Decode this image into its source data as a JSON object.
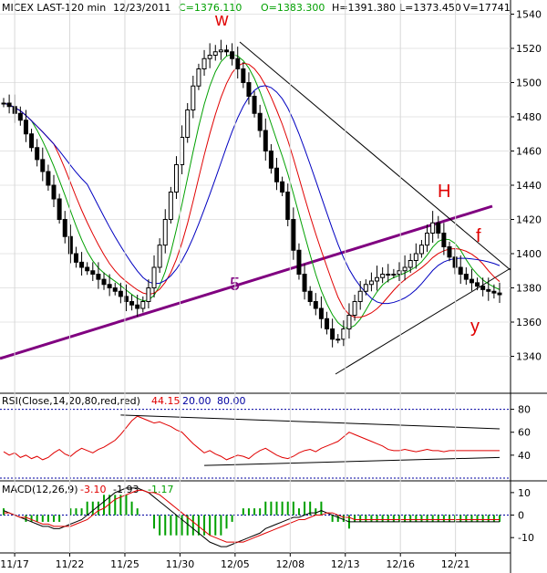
{
  "chart_data": [
    {
      "type": "candlestick",
      "header": {
        "symbol": "MICEX LAST-120 min",
        "date": "12/23/2011",
        "close": "C=1376.110",
        "open": "O=1383.300",
        "high": "H=1391.380",
        "low": "L=1373.450",
        "volume": "V=17741"
      },
      "x_ticks": [
        "11/17",
        "11/22",
        "11/25",
        "11/30",
        "12/05",
        "12/08",
        "12/13",
        "12/16",
        "12/21"
      ],
      "y_ticks": [
        1340,
        1360,
        1380,
        1400,
        1420,
        1440,
        1460,
        1480,
        1500,
        1520,
        1540
      ],
      "ylim": [
        1320,
        1544
      ],
      "annotations": [
        "w",
        "H",
        "f",
        "y",
        "5"
      ],
      "closes": [
        1488,
        1486,
        1482,
        1478,
        1470,
        1462,
        1455,
        1448,
        1440,
        1432,
        1420,
        1410,
        1400,
        1395,
        1392,
        1390,
        1388,
        1385,
        1382,
        1380,
        1378,
        1375,
        1372,
        1370,
        1368,
        1372,
        1380,
        1392,
        1405,
        1420,
        1436,
        1452,
        1468,
        1484,
        1498,
        1508,
        1514,
        1516,
        1518,
        1519,
        1518,
        1514,
        1508,
        1500,
        1492,
        1482,
        1472,
        1460,
        1450,
        1442,
        1436,
        1420,
        1402,
        1388,
        1378,
        1372,
        1368,
        1362,
        1356,
        1350,
        1350,
        1356,
        1364,
        1372,
        1378,
        1382,
        1384,
        1386,
        1388,
        1388,
        1388,
        1390,
        1392,
        1396,
        1400,
        1405,
        1412,
        1418,
        1412,
        1404,
        1398,
        1392,
        1388,
        1385,
        1383,
        1381,
        1379,
        1378,
        1377,
        1376
      ]
    },
    {
      "type": "line",
      "label": "RSI(Close,14,20,80,red,red)",
      "value": "44.15",
      "levels_text": [
        "20.00",
        "80.00"
      ],
      "levels": [
        20,
        80
      ],
      "y_ticks": [
        40,
        60,
        80
      ],
      "ylim": [
        20,
        90
      ],
      "values": [
        43,
        40,
        42,
        38,
        40,
        37,
        39,
        36,
        38,
        42,
        45,
        41,
        39,
        43,
        46,
        44,
        42,
        45,
        47,
        50,
        53,
        58,
        64,
        70,
        74,
        72,
        70,
        68,
        69,
        67,
        65,
        62,
        60,
        55,
        50,
        46,
        42,
        44,
        41,
        39,
        36,
        38,
        40,
        39,
        37,
        41,
        44,
        46,
        43,
        40,
        38,
        37,
        39,
        42,
        44,
        45,
        43,
        46,
        48,
        50,
        52,
        56,
        60,
        58,
        56,
        54,
        52,
        50,
        48,
        45,
        44,
        44,
        45,
        44,
        43,
        44,
        45,
        44,
        44,
        43,
        44,
        44,
        44,
        44,
        44,
        44,
        44,
        44,
        44,
        44
      ]
    },
    {
      "type": "line",
      "label": "MACD(12,26,9)",
      "values_text": [
        "-3.10",
        "-1.93",
        "-1.17"
      ],
      "y_ticks": [
        -10,
        0,
        10
      ],
      "ylim": [
        -16,
        14
      ],
      "macd": [
        2,
        1,
        0,
        -1,
        -2,
        -3,
        -4,
        -5,
        -5,
        -6,
        -6,
        -5,
        -4,
        -3,
        -2,
        0,
        2,
        4,
        6,
        8,
        10,
        11,
        12,
        12,
        12,
        11,
        10,
        8,
        6,
        4,
        2,
        0,
        -2,
        -4,
        -6,
        -8,
        -10,
        -12,
        -13,
        -14,
        -14,
        -13,
        -12,
        -11,
        -10,
        -9,
        -8,
        -6,
        -5,
        -4,
        -3,
        -2,
        -1,
        -1,
        0,
        1,
        1,
        2,
        1,
        0,
        -1,
        -2,
        -3,
        -3,
        -3,
        -3,
        -3,
        -3,
        -3,
        -3,
        -3,
        -3,
        -3,
        -3,
        -3,
        -3,
        -3,
        -3,
        -3,
        -3,
        -3,
        -3,
        -3,
        -3,
        -3,
        -3,
        -3,
        -3,
        -3,
        -3
      ],
      "signal": [
        1,
        1,
        0,
        -1,
        -1,
        -2,
        -3,
        -4,
        -4,
        -5,
        -5,
        -5,
        -5,
        -4,
        -3,
        -2,
        0,
        2,
        3,
        5,
        7,
        8,
        9,
        10,
        11,
        11,
        10,
        10,
        9,
        7,
        5,
        3,
        1,
        -1,
        -3,
        -5,
        -7,
        -9,
        -10,
        -11,
        -12,
        -12,
        -12,
        -12,
        -11,
        -10,
        -9,
        -8,
        -7,
        -6,
        -5,
        -4,
        -3,
        -2,
        -2,
        -1,
        0,
        0,
        1,
        1,
        0,
        -1,
        -1,
        -2,
        -2,
        -2,
        -2,
        -2,
        -2,
        -2,
        -2,
        -2,
        -2,
        -2,
        -2,
        -2,
        -2,
        -2,
        -2,
        -2,
        -2,
        -2,
        -2,
        -2,
        -2,
        -2,
        -2,
        -2,
        -2,
        -2
      ]
    }
  ],
  "colors": {
    "price": "#000000",
    "ma_fast": "#00a000",
    "ma_mid": "#e00000",
    "ma_slow": "#0000c0",
    "trend_purple": "#800080",
    "rsi_line": "#e00000",
    "levels": "#0000a0",
    "macd_line": "#000000",
    "signal_line": "#e00000",
    "histogram": "#00a000",
    "annotation": "#e00000"
  }
}
